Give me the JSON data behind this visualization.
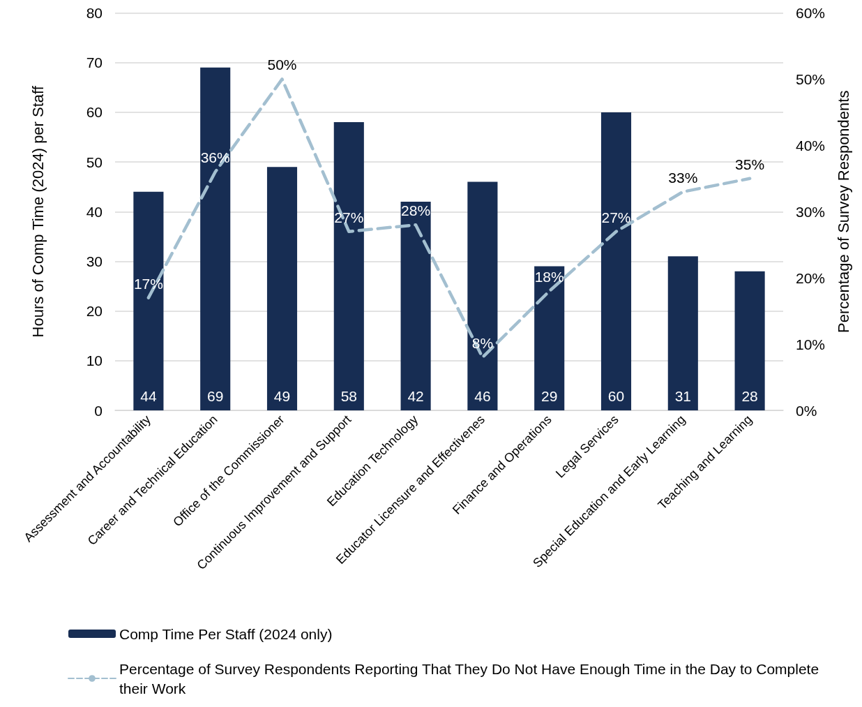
{
  "chart_data": {
    "type": "bar",
    "ylabel": "Hours of Comp Time (2024) per Staff",
    "y2label": "Percentage of Survey Respondents",
    "categories": [
      "Assessment and Accountability",
      "Career and Technical Education",
      "Office of the Commissioner",
      "Continuous Improvement and Support",
      "Education Technology",
      "Educator Licensure and Effectivenes",
      "Finance and Operations",
      "Legal Services",
      "Special Education and Early Learning",
      "Teaching and Learning"
    ],
    "series": [
      {
        "name": "Comp Time Per Staff (2024 only)",
        "color": "#172d53",
        "values": [
          44,
          69,
          49,
          58,
          42,
          46,
          29,
          60,
          31,
          28
        ]
      },
      {
        "name": "Percentage of Survey Respondents Reporting That They Do Not Have Enough Time in the Day to Complete their Work",
        "type": "line",
        "axis": "y2",
        "color": "#a3bfd0",
        "line_style": "dashed",
        "marker": "none",
        "values": [
          17,
          36,
          50,
          27,
          28,
          8,
          18,
          27,
          33,
          35
        ],
        "value_labels": [
          "17%",
          "36%",
          "50%",
          "27%",
          "28%",
          "8%",
          "18%",
          "27%",
          "33%",
          "35%"
        ]
      }
    ],
    "data_labels": true,
    "ylim": [
      0,
      80
    ],
    "yticks": [
      0,
      10,
      20,
      30,
      40,
      50,
      60,
      70,
      80
    ],
    "y2lim": [
      0,
      60
    ],
    "y2ticks": [
      {
        "value": 0,
        "label": "0%"
      },
      {
        "value": 10,
        "label": "10%"
      },
      {
        "value": 20,
        "label": "20%"
      },
      {
        "value": 30,
        "label": "30%"
      },
      {
        "value": 40,
        "label": "40%"
      },
      {
        "value": 50,
        "label": "50%"
      },
      {
        "value": 60,
        "label": "60%"
      }
    ],
    "grid": "y",
    "legend": "bottom left"
  }
}
